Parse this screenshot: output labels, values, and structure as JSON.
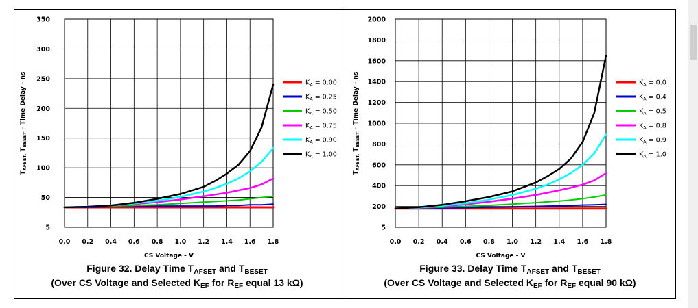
{
  "chart_data": [
    {
      "type": "line",
      "figure_title": "Figure 32. Delay Time T",
      "figure_sub_a": "AFSET",
      "figure_mid": " and T",
      "figure_sub_b": "BESET",
      "caption_line2_part1": "(Over CS Voltage and Selected K",
      "caption_line2_sub1": "EF",
      "caption_line2_part2": " for R",
      "caption_line2_sub2": "EF",
      "caption_line2_part3": " equal 13 kΩ)",
      "xlabel": "CS Voltage - V",
      "ylabel_part1": "T",
      "ylabel_sub1": "AFSET,",
      "ylabel_part2": " T",
      "ylabel_sub2": "BESET",
      "ylabel_part3": " - Time Delay - ns",
      "x_ticks": [
        "0.0",
        "0.2",
        "0.4",
        "0.6",
        "0.8",
        "1.0",
        "1.2",
        "1.4",
        "1.6",
        "1.8"
      ],
      "y_ticks": [
        "5",
        "50",
        "100",
        "150",
        "200",
        "250",
        "300",
        "350"
      ],
      "xlim": [
        0,
        1.8
      ],
      "y_tick_values": [
        5,
        50,
        100,
        150,
        200,
        250,
        300,
        350
      ],
      "grid": true,
      "legend_position": "right",
      "x": [
        0.0,
        0.2,
        0.4,
        0.6,
        0.8,
        1.0,
        1.2,
        1.3,
        1.4,
        1.5,
        1.6,
        1.7,
        1.8
      ],
      "series": [
        {
          "name": "K",
          "sub": "A",
          "suffix": " = 0.00",
          "color": "#ff0000",
          "width": 3,
          "values": [
            35,
            35,
            35,
            35,
            35,
            35,
            35,
            35,
            35,
            35,
            35,
            35,
            35
          ]
        },
        {
          "name": "K",
          "sub": "A",
          "suffix": " = 0.25",
          "color": "#0000cc",
          "width": 2,
          "values": [
            35,
            35,
            36,
            36,
            37,
            37,
            37,
            37,
            38,
            38,
            39,
            39,
            40
          ]
        },
        {
          "name": "K",
          "sub": "A",
          "suffix": " = 0.50",
          "color": "#00cc00",
          "width": 2,
          "values": [
            35,
            36,
            37,
            38,
            39,
            41,
            43,
            44,
            45,
            46,
            48,
            50,
            52
          ]
        },
        {
          "name": "K",
          "sub": "A",
          "suffix": " = 0.75",
          "color": "#ff00ff",
          "width": 2.5,
          "values": [
            35,
            36,
            38,
            40,
            43,
            47,
            52,
            55,
            58,
            62,
            66,
            72,
            82
          ]
        },
        {
          "name": "K",
          "sub": "A",
          "suffix": " = 0.90",
          "color": "#00ffff",
          "width": 2.5,
          "values": [
            35,
            36,
            38,
            41,
            45,
            51,
            60,
            66,
            73,
            82,
            94,
            110,
            133
          ]
        },
        {
          "name": "K",
          "sub": "A",
          "suffix": " = 1.00",
          "color": "#000000",
          "width": 2.5,
          "values": [
            35,
            36,
            38,
            42,
            48,
            56,
            68,
            78,
            90,
            105,
            128,
            168,
            240
          ]
        }
      ]
    },
    {
      "type": "line",
      "figure_title": "Figure 33. Delay Time T",
      "figure_sub_a": "AFSET",
      "figure_mid": " and T",
      "figure_sub_b": "BESET",
      "caption_line2_part1": "(Over CS Voltage and Selected K",
      "caption_line2_sub1": "EF",
      "caption_line2_part2": " for R",
      "caption_line2_sub2": "EF",
      "caption_line2_part3": " equal 90 kΩ)",
      "xlabel": "CS Voltage - V",
      "ylabel_part1": "T",
      "ylabel_sub1": "AFSET,",
      "ylabel_part2": " T",
      "ylabel_sub2": "BESET",
      "ylabel_part3": " - Time Delay - ns",
      "x_ticks": [
        "0.0",
        "0.2",
        "0.4",
        "0.6",
        "0.8",
        "1.0",
        "1.2",
        "1.4",
        "1.6",
        "1.8"
      ],
      "y_ticks": [
        "5",
        "200",
        "400",
        "600",
        "800",
        "1000",
        "1200",
        "1400",
        "1600",
        "1800",
        "2000"
      ],
      "xlim": [
        0,
        1.8
      ],
      "y_tick_values": [
        5,
        200,
        400,
        600,
        800,
        1000,
        1200,
        1400,
        1600,
        1800,
        2000
      ],
      "grid": true,
      "legend_position": "right",
      "x": [
        0.0,
        0.2,
        0.4,
        0.6,
        0.8,
        1.0,
        1.2,
        1.3,
        1.4,
        1.5,
        1.6,
        1.7,
        1.8
      ],
      "series": [
        {
          "name": "K",
          "sub": "A",
          "suffix": " = 0.0",
          "color": "#ff0000",
          "width": 3,
          "values": [
            180,
            180,
            180,
            180,
            180,
            180,
            180,
            180,
            180,
            180,
            180,
            180,
            180
          ]
        },
        {
          "name": "K",
          "sub": "A",
          "suffix": " = 0.4",
          "color": "#0000cc",
          "width": 2,
          "values": [
            180,
            182,
            185,
            188,
            192,
            196,
            200,
            203,
            206,
            209,
            213,
            216,
            220
          ]
        },
        {
          "name": "K",
          "sub": "A",
          "suffix": " = 0.5",
          "color": "#00cc00",
          "width": 2,
          "values": [
            180,
            185,
            192,
            200,
            210,
            222,
            236,
            244,
            252,
            262,
            275,
            290,
            310
          ]
        },
        {
          "name": "K",
          "sub": "A",
          "suffix": " = 0.8",
          "color": "#ff00ff",
          "width": 2.5,
          "values": [
            180,
            188,
            200,
            220,
            245,
            275,
            310,
            332,
            355,
            380,
            410,
            450,
            520
          ]
        },
        {
          "name": "K",
          "sub": "A",
          "suffix": " = 0.9",
          "color": "#00ffff",
          "width": 2.5,
          "values": [
            180,
            190,
            205,
            230,
            265,
            310,
            370,
            410,
            460,
            520,
            600,
            710,
            890
          ]
        },
        {
          "name": "K",
          "sub": "A",
          "suffix": " = 1.0",
          "color": "#000000",
          "width": 2.5,
          "values": [
            180,
            192,
            215,
            250,
            290,
            345,
            430,
            490,
            560,
            660,
            820,
            1100,
            1650
          ]
        }
      ]
    }
  ]
}
